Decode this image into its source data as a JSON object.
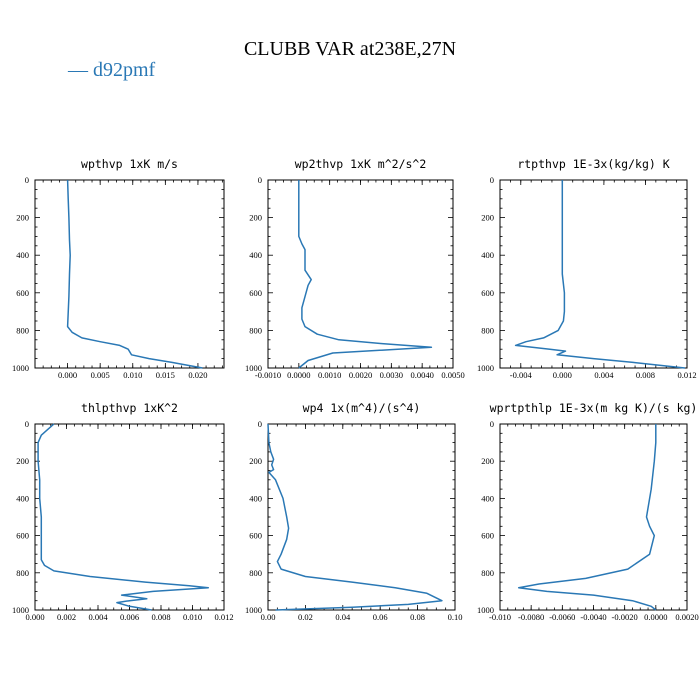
{
  "title": "CLUBB VAR at238E,27N",
  "legend": {
    "label": "— d92pmf",
    "color": "#2a78b5"
  },
  "chart_data": [
    {
      "type": "line",
      "title": "wpthvp  1xK m/s",
      "xlim": [
        -0.005,
        0.024
      ],
      "ylim": [
        1000,
        0
      ],
      "xticks": [
        0,
        0.005,
        0.01,
        0.015,
        0.02
      ],
      "xtick_labels": [
        "0.000",
        "0.005",
        "0.010",
        "0.015",
        "0.020"
      ],
      "yticks": [
        0,
        200,
        400,
        600,
        800,
        1000
      ],
      "ytick_labels": [
        "0",
        "200",
        "400",
        "600",
        "800",
        "1000"
      ],
      "series": [
        {
          "x": [
            0.0,
            0.0001,
            0.0002,
            0.0003,
            0.0004,
            0.0003,
            0.0002,
            0.0,
            0.0007,
            0.0022,
            0.005,
            0.008,
            0.0093,
            0.0098,
            0.0125,
            0.016,
            0.0207
          ],
          "y": [
            0,
            100,
            200,
            320,
            400,
            500,
            620,
            780,
            810,
            840,
            860,
            880,
            900,
            930,
            950,
            970,
            1000
          ]
        }
      ]
    },
    {
      "type": "line",
      "title": "wp2thvp  1xK m^2/s^2",
      "xlim": [
        -0.001,
        0.005
      ],
      "ylim": [
        1000,
        0
      ],
      "xticks": [
        -0.001,
        0,
        0.001,
        0.002,
        0.003,
        0.004,
        0.005
      ],
      "xtick_labels": [
        "-0.0010",
        "0.0000",
        "0.0010",
        "0.0020",
        "0.0030",
        "0.0040",
        "0.0050"
      ],
      "yticks": [
        0,
        200,
        400,
        600,
        800,
        1000
      ],
      "ytick_labels": [
        "0",
        "200",
        "400",
        "600",
        "800",
        "1000"
      ],
      "series": [
        {
          "x": [
            0.0,
            0.0,
            0.0,
            0.0,
            0.0001,
            0.0002,
            0.0002,
            0.0002,
            0.0004,
            0.0003,
            0.0002,
            0.0001,
            0.0001,
            0.0002,
            0.0006,
            0.0013,
            0.0027,
            0.0043,
            0.0011,
            0.0003,
            0.0
          ],
          "y": [
            0,
            100,
            200,
            300,
            340,
            370,
            420,
            480,
            530,
            560,
            620,
            680,
            740,
            780,
            820,
            850,
            870,
            890,
            920,
            960,
            1000
          ]
        }
      ]
    },
    {
      "type": "line",
      "title": "rtpthvp  1E-3x(kg/kg) K",
      "xlim": [
        -0.006,
        0.012
      ],
      "ylim": [
        1000,
        0
      ],
      "xticks": [
        -0.004,
        0,
        0.004,
        0.008,
        0.012
      ],
      "xtick_labels": [
        "-0.004",
        "0.000",
        "0.004",
        "0.008",
        "0.012"
      ],
      "yticks": [
        0,
        200,
        400,
        600,
        800,
        1000
      ],
      "ytick_labels": [
        "0",
        "200",
        "400",
        "600",
        "800",
        "1000"
      ],
      "series": [
        {
          "x": [
            0.0,
            0.0,
            0.0,
            0.0,
            0.0,
            0.0,
            0.0002,
            0.0002,
            0.0001,
            -0.0004,
            -0.0018,
            -0.0035,
            -0.0045,
            -0.0012,
            0.0003,
            -0.0005,
            0.003,
            0.0068,
            0.0118
          ],
          "y": [
            0,
            100,
            200,
            300,
            400,
            500,
            600,
            700,
            750,
            800,
            840,
            860,
            880,
            900,
            910,
            930,
            950,
            970,
            1000
          ]
        }
      ]
    },
    {
      "type": "line",
      "title": "thlpthvp  1xK^2",
      "xlim": [
        0,
        0.012
      ],
      "ylim": [
        1000,
        0
      ],
      "xticks": [
        0,
        0.002,
        0.004,
        0.006,
        0.008,
        0.01,
        0.012
      ],
      "xtick_labels": [
        "0.000",
        "0.002",
        "0.004",
        "0.006",
        "0.008",
        "0.010",
        "0.012"
      ],
      "yticks": [
        0,
        200,
        400,
        600,
        800,
        1000
      ],
      "ytick_labels": [
        "0",
        "200",
        "400",
        "600",
        "800",
        "1000"
      ],
      "series": [
        {
          "x": [
            0.0012,
            0.0008,
            0.0004,
            0.0002,
            0.0002,
            0.0003,
            0.0003,
            0.0004,
            0.0004,
            0.0004,
            0.0004,
            0.0004,
            0.0006,
            0.0012,
            0.0035,
            0.007,
            0.0098,
            0.011,
            0.0075,
            0.0055,
            0.0071,
            0.006,
            0.0052,
            0.006,
            0.0074
          ],
          "y": [
            0,
            30,
            60,
            100,
            200,
            300,
            400,
            500,
            530,
            560,
            650,
            730,
            760,
            790,
            820,
            850,
            870,
            880,
            900,
            920,
            940,
            950,
            960,
            980,
            1000
          ]
        }
      ]
    },
    {
      "type": "line",
      "title": "wp4  1x(m^4)/(s^4)",
      "xlim": [
        0,
        0.1
      ],
      "ylim": [
        1000,
        0
      ],
      "xticks": [
        0,
        0.02,
        0.04,
        0.06,
        0.08,
        0.1
      ],
      "xtick_labels": [
        "0.00",
        "0.02",
        "0.04",
        "0.06",
        "0.08",
        "0.10"
      ],
      "yticks": [
        0,
        200,
        400,
        600,
        800,
        1000
      ],
      "ytick_labels": [
        "0",
        "200",
        "400",
        "600",
        "800",
        "1000"
      ],
      "series": [
        {
          "x": [
            0.0,
            0.0005,
            0.0015,
            0.003,
            0.002,
            0.003,
            0.0005,
            0.004,
            0.008,
            0.01,
            0.011,
            0.01,
            0.007,
            0.005,
            0.007,
            0.02,
            0.045,
            0.068,
            0.085,
            0.093,
            0.075,
            0.045,
            0.004
          ],
          "y": [
            0,
            100,
            150,
            190,
            220,
            245,
            260,
            300,
            400,
            500,
            560,
            620,
            700,
            740,
            780,
            820,
            850,
            880,
            910,
            950,
            970,
            985,
            1000
          ]
        }
      ]
    },
    {
      "type": "line",
      "title": "wprtpthlp  1E-3x(m kg K)/(s kg)",
      "xlim": [
        -0.01,
        0.002
      ],
      "ylim": [
        1000,
        0
      ],
      "xticks": [
        -0.01,
        -0.008,
        -0.006,
        -0.004,
        -0.002,
        0,
        0.002
      ],
      "xtick_labels": [
        "-0.010",
        "-0.0080",
        "-0.0060",
        "-0.0040",
        "-0.0020",
        "0.0000",
        "0.0020"
      ],
      "yticks": [
        0,
        200,
        400,
        600,
        800,
        1000
      ],
      "ytick_labels": [
        "0",
        "200",
        "400",
        "600",
        "800",
        "1000"
      ],
      "series": [
        {
          "x": [
            0.0,
            0.0,
            -0.0001,
            -0.0003,
            -0.0006,
            -0.0004,
            -0.0001,
            -0.0004,
            -0.0018,
            -0.0045,
            -0.0075,
            -0.0088,
            -0.007,
            -0.004,
            -0.0015,
            -0.0003,
            0.0
          ],
          "y": [
            0,
            100,
            200,
            350,
            500,
            550,
            600,
            700,
            780,
            830,
            860,
            880,
            900,
            920,
            950,
            980,
            1000
          ]
        }
      ]
    }
  ]
}
